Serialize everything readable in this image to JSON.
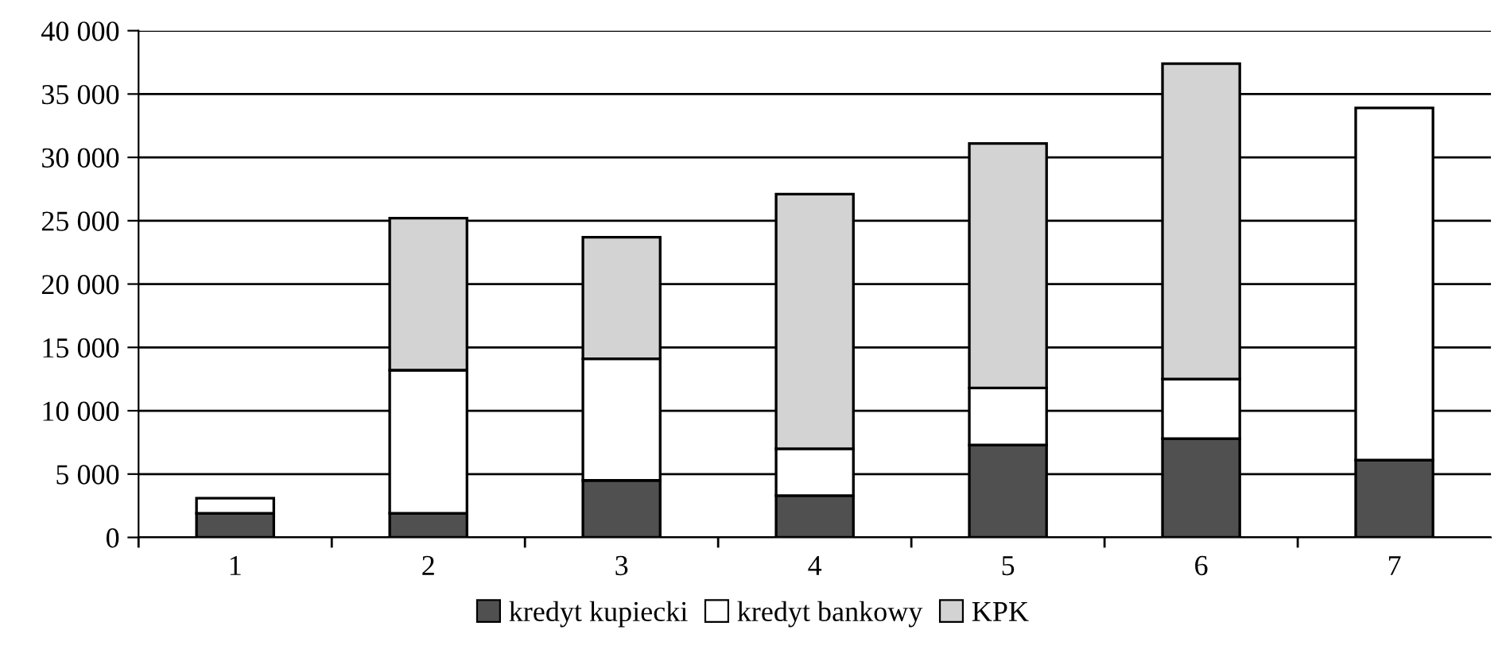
{
  "chart_data": {
    "type": "bar",
    "stacked": true,
    "categories": [
      "1",
      "2",
      "3",
      "4",
      "5",
      "6",
      "7"
    ],
    "series": [
      {
        "name": "kredyt kupiecki",
        "color": "#505050",
        "values": [
          1900,
          1900,
          4500,
          3300,
          7300,
          7800,
          6100
        ]
      },
      {
        "name": "kredyt bankowy",
        "color": "#ffffff",
        "values": [
          1200,
          11300,
          9600,
          3700,
          4500,
          4700,
          27800
        ]
      },
      {
        "name": "KPK",
        "color": "#d3d3d3",
        "values": [
          null,
          12000,
          9600,
          20100,
          19300,
          24900,
          null
        ]
      }
    ],
    "ylim": [
      0,
      40000
    ],
    "yticks": [
      {
        "value": 0,
        "label": "0"
      },
      {
        "value": 5000,
        "label": "5 000"
      },
      {
        "value": 10000,
        "label": "10 000"
      },
      {
        "value": 15000,
        "label": "15 000"
      },
      {
        "value": 20000,
        "label": "20 000"
      },
      {
        "value": 25000,
        "label": "25 000"
      },
      {
        "value": 30000,
        "label": "30 000"
      },
      {
        "value": 35000,
        "label": "35 000"
      },
      {
        "value": 40000,
        "label": "40 000"
      }
    ],
    "grid": "y",
    "legend": "bottom"
  }
}
